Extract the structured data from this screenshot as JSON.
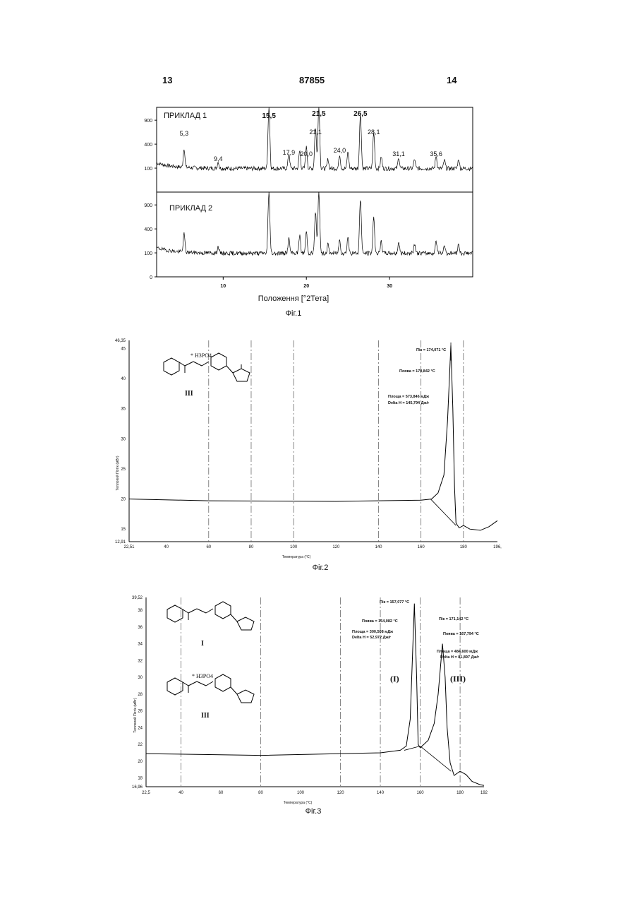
{
  "page": {
    "num_left": "13",
    "doc_number": "87855",
    "num_right": "14"
  },
  "fig1": {
    "caption": "Фіг.1",
    "xlabel": "Положення [°2Тета]",
    "x_ticks": [
      "10",
      "20",
      "30"
    ],
    "y_ticks": [
      "900",
      "400",
      "100",
      "0"
    ],
    "panel1_label": "ПРИКЛАД 1",
    "panel2_label": "ПРИКЛАД 2",
    "peak_labels": [
      {
        "text": "5,3",
        "x": 5.3,
        "bold": false
      },
      {
        "text": "9,4",
        "x": 9.4,
        "bold": false
      },
      {
        "text": "15,5",
        "x": 15.5,
        "bold": true
      },
      {
        "text": "17,9",
        "x": 17.9,
        "bold": false
      },
      {
        "text": "20,0",
        "x": 20.0,
        "bold": false
      },
      {
        "text": "21,1",
        "x": 21.1,
        "bold": false
      },
      {
        "text": "21,5",
        "x": 21.5,
        "bold": true
      },
      {
        "text": "24,0",
        "x": 24.0,
        "bold": false
      },
      {
        "text": "26,5",
        "x": 26.5,
        "bold": true
      },
      {
        "text": "28,1",
        "x": 28.1,
        "bold": false
      },
      {
        "text": "31,1",
        "x": 31.1,
        "bold": false
      },
      {
        "text": "35,6",
        "x": 35.6,
        "bold": false
      }
    ]
  },
  "fig2": {
    "caption": "Фіг.2",
    "xlabel": "Температура (°C)",
    "ylabel": "Тепловий Потік (мВт)",
    "x_ticks": [
      "22,51",
      "40",
      "60",
      "80",
      "100",
      "120",
      "140",
      "160",
      "180",
      "196,"
    ],
    "y_ticks": [
      "46,35",
      "45",
      "40",
      "35",
      "30",
      "25",
      "20",
      "15",
      "12,91"
    ],
    "compound_label": "III",
    "salt_label": "* H3PO4",
    "annotations": [
      "Пік = 174,071 °C",
      "Поява = 170,842 °C",
      "Площа = 573,846 мДж",
      "Delta H = 145,794 Дж/г"
    ]
  },
  "fig3": {
    "caption": "Фіг.3",
    "xlabel": "Температура (°C)",
    "ylabel": "Тепловий Потік (мВт)",
    "x_ticks": [
      "22,5",
      "40",
      "60",
      "80",
      "100",
      "120",
      "140",
      "160",
      "180",
      "192"
    ],
    "y_ticks": [
      "39,52",
      "38",
      "36",
      "34",
      "32",
      "30",
      "28",
      "26",
      "24",
      "22",
      "20",
      "18",
      "16,96"
    ],
    "compound_I_label": "I",
    "compound_III_label": "III",
    "salt_label": "* H3PO4",
    "peak_I_label": "(I)",
    "peak_III_label": "(III)",
    "annotations_I": [
      "Пік = 157,077 °C",
      "Поява = 154,082 °C",
      "Площа = 300,508 мДж",
      "Delta H = 52,972 Дж/г"
    ],
    "annotations_III": [
      "Пік = 171,142 °C",
      "Поява = 167,794 °C",
      "Площа = 484,600 мДж",
      "Delta H = 81,897 Дж/г"
    ]
  }
}
